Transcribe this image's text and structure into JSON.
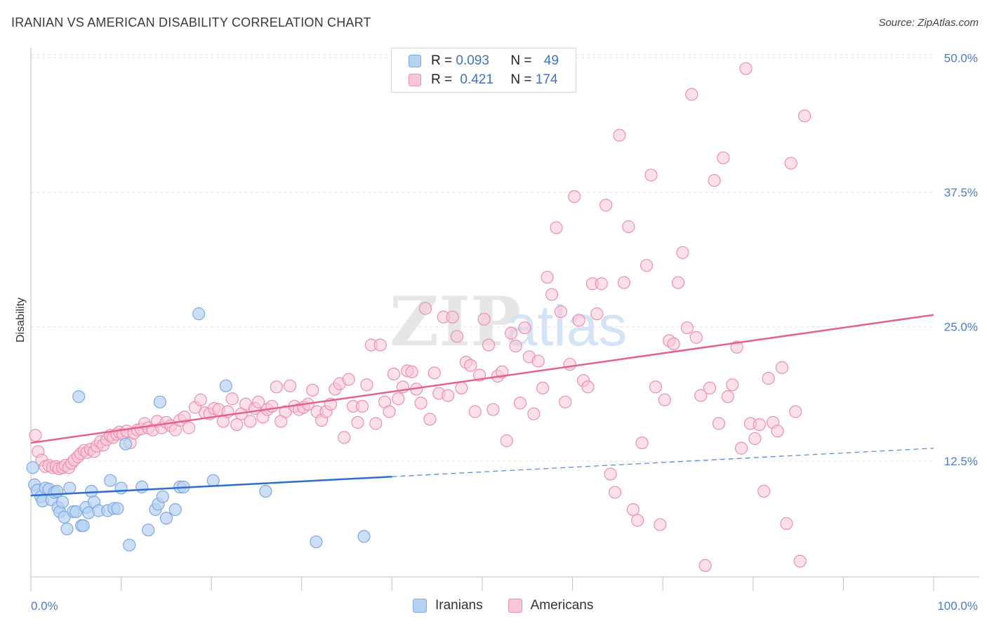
{
  "title": "IRANIAN VS AMERICAN DISABILITY CORRELATION CHART",
  "source": "Source: ZipAtlas.com",
  "watermark": {
    "zip": "ZIP",
    "atlas": "atlas"
  },
  "legend": {
    "r_label": "R = ",
    "n_label": "N = ",
    "rows": [
      {
        "r": "0.093",
        "n": "49"
      },
      {
        "r": "0.421",
        "n": "174"
      }
    ]
  },
  "bottom_legend": [
    "Iranians",
    "Americans"
  ],
  "colors": {
    "blue_fill": "#b7d1f3",
    "blue_stroke": "#7fa8e0",
    "blue_line": "#2f6fcc",
    "pink_fill": "#f9c6d6",
    "pink_stroke": "#ea8fb0",
    "pink_line": "#e5608f",
    "axis_label": "#4a7cc7"
  },
  "chart_data": {
    "type": "scatter",
    "title": "IRANIAN VS AMERICAN DISABILITY CORRELATION CHART",
    "xlabel": "",
    "ylabel": "Disability",
    "xlim": [
      0,
      100
    ],
    "ylim": [
      0,
      52
    ],
    "x_tick_labels": [
      "0.0%",
      "100.0%"
    ],
    "y_ticks": [
      12.5,
      25.0,
      37.5,
      50.0
    ],
    "y_tick_labels": [
      "12.5%",
      "25.0%",
      "37.5%",
      "50.0%"
    ],
    "grid": true,
    "legend_position": "top-center",
    "series": [
      {
        "name": "Iranians",
        "r": 0.093,
        "n": 49,
        "trend": {
          "x0": 0,
          "y0": 9.3,
          "x1": 100,
          "y1": 13.7,
          "solid_until": 40
        },
        "points": [
          [
            0.2,
            11.9
          ],
          [
            0.4,
            10.3
          ],
          [
            0.7,
            9.8
          ],
          [
            1.1,
            9.2
          ],
          [
            1.3,
            8.8
          ],
          [
            1.6,
            10.0
          ],
          [
            2.0,
            9.9
          ],
          [
            2.3,
            8.9
          ],
          [
            2.6,
            9.6
          ],
          [
            2.9,
            9.7
          ],
          [
            3.0,
            8.2
          ],
          [
            3.2,
            7.8
          ],
          [
            3.5,
            8.7
          ],
          [
            3.7,
            7.3
          ],
          [
            4.0,
            6.2
          ],
          [
            4.3,
            10.0
          ],
          [
            4.7,
            7.8
          ],
          [
            5.0,
            7.8
          ],
          [
            5.3,
            18.5
          ],
          [
            5.6,
            6.5
          ],
          [
            5.8,
            6.5
          ],
          [
            6.1,
            8.2
          ],
          [
            6.4,
            7.7
          ],
          [
            6.7,
            9.7
          ],
          [
            7.0,
            8.7
          ],
          [
            7.5,
            7.9
          ],
          [
            8.5,
            7.9
          ],
          [
            8.8,
            10.7
          ],
          [
            9.2,
            8.1
          ],
          [
            9.6,
            8.1
          ],
          [
            10.0,
            10.0
          ],
          [
            10.5,
            14.1
          ],
          [
            10.9,
            4.7
          ],
          [
            12.3,
            10.1
          ],
          [
            13.0,
            6.1
          ],
          [
            13.8,
            8.0
          ],
          [
            14.1,
            8.5
          ],
          [
            14.3,
            18.0
          ],
          [
            14.6,
            9.2
          ],
          [
            15.0,
            7.2
          ],
          [
            16.0,
            8.0
          ],
          [
            16.5,
            10.1
          ],
          [
            16.9,
            10.1
          ],
          [
            18.6,
            26.2
          ],
          [
            20.2,
            10.7
          ],
          [
            21.6,
            19.5
          ],
          [
            26.0,
            9.7
          ],
          [
            31.6,
            5.0
          ],
          [
            36.9,
            5.5
          ]
        ]
      },
      {
        "name": "Americans",
        "r": 0.421,
        "n": 174,
        "trend": {
          "x0": 0,
          "y0": 14.2,
          "x1": 100,
          "y1": 26.1
        },
        "points": [
          [
            0.5,
            14.9
          ],
          [
            0.8,
            13.4
          ],
          [
            1.2,
            12.6
          ],
          [
            1.6,
            12.0
          ],
          [
            2.0,
            12.1
          ],
          [
            2.4,
            11.9
          ],
          [
            2.8,
            12.0
          ],
          [
            3.1,
            11.8
          ],
          [
            3.5,
            11.9
          ],
          [
            3.8,
            12.1
          ],
          [
            4.2,
            11.9
          ],
          [
            4.5,
            12.3
          ],
          [
            4.8,
            12.6
          ],
          [
            5.2,
            12.9
          ],
          [
            5.5,
            13.2
          ],
          [
            5.9,
            13.5
          ],
          [
            6.2,
            13.3
          ],
          [
            6.6,
            13.6
          ],
          [
            7.0,
            13.4
          ],
          [
            7.3,
            13.9
          ],
          [
            7.7,
            14.3
          ],
          [
            8.0,
            14.0
          ],
          [
            8.4,
            14.5
          ],
          [
            8.8,
            14.9
          ],
          [
            9.1,
            14.7
          ],
          [
            9.5,
            15.0
          ],
          [
            9.8,
            15.2
          ],
          [
            10.2,
            15.0
          ],
          [
            10.6,
            15.3
          ],
          [
            11.0,
            14.2
          ],
          [
            11.4,
            15.1
          ],
          [
            11.8,
            15.4
          ],
          [
            12.2,
            15.5
          ],
          [
            12.6,
            16.0
          ],
          [
            13.0,
            15.6
          ],
          [
            13.5,
            15.4
          ],
          [
            14.0,
            16.2
          ],
          [
            14.5,
            15.6
          ],
          [
            15.0,
            16.1
          ],
          [
            15.5,
            15.8
          ],
          [
            16.0,
            15.4
          ],
          [
            16.5,
            16.3
          ],
          [
            17.0,
            16.6
          ],
          [
            17.5,
            15.6
          ],
          [
            18.2,
            17.5
          ],
          [
            18.8,
            18.2
          ],
          [
            19.3,
            17.0
          ],
          [
            19.8,
            16.9
          ],
          [
            20.3,
            17.4
          ],
          [
            20.8,
            17.3
          ],
          [
            21.3,
            16.2
          ],
          [
            21.8,
            17.1
          ],
          [
            22.3,
            18.3
          ],
          [
            22.8,
            15.9
          ],
          [
            23.3,
            16.9
          ],
          [
            23.8,
            17.8
          ],
          [
            24.3,
            16.2
          ],
          [
            24.8,
            17.4
          ],
          [
            25.2,
            18.0
          ],
          [
            25.7,
            16.6
          ],
          [
            26.2,
            17.3
          ],
          [
            26.7,
            17.6
          ],
          [
            27.2,
            19.4
          ],
          [
            27.7,
            16.2
          ],
          [
            28.2,
            17.1
          ],
          [
            28.7,
            19.5
          ],
          [
            29.2,
            17.6
          ],
          [
            29.7,
            17.3
          ],
          [
            30.2,
            17.5
          ],
          [
            30.7,
            17.8
          ],
          [
            31.2,
            19.1
          ],
          [
            31.7,
            17.1
          ],
          [
            32.2,
            16.3
          ],
          [
            32.7,
            17.1
          ],
          [
            33.2,
            17.8
          ],
          [
            33.7,
            19.2
          ],
          [
            34.2,
            19.7
          ],
          [
            34.7,
            14.7
          ],
          [
            35.2,
            20.1
          ],
          [
            35.7,
            17.6
          ],
          [
            36.2,
            16.1
          ],
          [
            36.7,
            17.6
          ],
          [
            37.2,
            19.6
          ],
          [
            37.7,
            23.3
          ],
          [
            38.2,
            16.0
          ],
          [
            38.7,
            23.3
          ],
          [
            39.2,
            18.0
          ],
          [
            39.7,
            17.1
          ],
          [
            40.2,
            20.6
          ],
          [
            40.7,
            18.3
          ],
          [
            41.2,
            19.4
          ],
          [
            41.7,
            20.9
          ],
          [
            42.2,
            20.8
          ],
          [
            42.7,
            19.2
          ],
          [
            43.2,
            17.9
          ],
          [
            43.7,
            26.7
          ],
          [
            44.2,
            16.4
          ],
          [
            44.7,
            20.7
          ],
          [
            45.2,
            18.8
          ],
          [
            45.7,
            25.9
          ],
          [
            46.2,
            18.6
          ],
          [
            46.7,
            25.9
          ],
          [
            47.2,
            24.1
          ],
          [
            47.7,
            19.3
          ],
          [
            48.2,
            21.7
          ],
          [
            48.7,
            21.4
          ],
          [
            49.2,
            17.1
          ],
          [
            49.7,
            20.5
          ],
          [
            50.2,
            25.7
          ],
          [
            50.7,
            23.3
          ],
          [
            51.2,
            17.3
          ],
          [
            51.7,
            20.4
          ],
          [
            52.2,
            20.8
          ],
          [
            52.7,
            14.4
          ],
          [
            53.2,
            24.4
          ],
          [
            53.7,
            23.2
          ],
          [
            54.2,
            17.9
          ],
          [
            54.7,
            24.9
          ],
          [
            55.2,
            22.2
          ],
          [
            55.7,
            16.9
          ],
          [
            56.2,
            21.8
          ],
          [
            56.7,
            19.3
          ],
          [
            57.2,
            29.6
          ],
          [
            57.7,
            28.0
          ],
          [
            58.2,
            34.2
          ],
          [
            58.7,
            26.4
          ],
          [
            59.2,
            18.0
          ],
          [
            59.7,
            21.5
          ],
          [
            60.2,
            37.1
          ],
          [
            60.7,
            25.6
          ],
          [
            61.2,
            20.0
          ],
          [
            61.7,
            19.4
          ],
          [
            62.2,
            29.0
          ],
          [
            62.7,
            26.2
          ],
          [
            63.2,
            29.0
          ],
          [
            63.7,
            36.3
          ],
          [
            64.2,
            11.3
          ],
          [
            64.7,
            9.6
          ],
          [
            65.2,
            42.8
          ],
          [
            65.7,
            29.1
          ],
          [
            66.2,
            34.3
          ],
          [
            66.7,
            8.0
          ],
          [
            67.2,
            7.0
          ],
          [
            67.7,
            14.2
          ],
          [
            68.2,
            30.7
          ],
          [
            68.7,
            39.1
          ],
          [
            69.2,
            19.4
          ],
          [
            69.7,
            6.6
          ],
          [
            70.2,
            18.2
          ],
          [
            70.7,
            23.7
          ],
          [
            71.2,
            23.4
          ],
          [
            71.7,
            29.1
          ],
          [
            72.2,
            31.9
          ],
          [
            72.7,
            24.9
          ],
          [
            73.2,
            46.6
          ],
          [
            73.7,
            24.0
          ],
          [
            74.2,
            18.6
          ],
          [
            74.7,
            2.8
          ],
          [
            75.2,
            19.3
          ],
          [
            75.7,
            38.6
          ],
          [
            76.2,
            16.0
          ],
          [
            76.7,
            40.7
          ],
          [
            77.2,
            18.5
          ],
          [
            77.7,
            19.6
          ],
          [
            78.2,
            23.1
          ],
          [
            78.7,
            13.7
          ],
          [
            79.2,
            49.0
          ],
          [
            79.7,
            16.0
          ],
          [
            80.2,
            14.6
          ],
          [
            80.7,
            15.9
          ],
          [
            81.2,
            9.7
          ],
          [
            81.7,
            20.2
          ],
          [
            82.2,
            16.1
          ],
          [
            82.7,
            15.3
          ],
          [
            83.2,
            21.2
          ],
          [
            83.7,
            6.7
          ],
          [
            84.2,
            40.2
          ],
          [
            84.7,
            17.1
          ],
          [
            85.2,
            3.2
          ],
          [
            85.7,
            44.6
          ]
        ]
      }
    ]
  }
}
